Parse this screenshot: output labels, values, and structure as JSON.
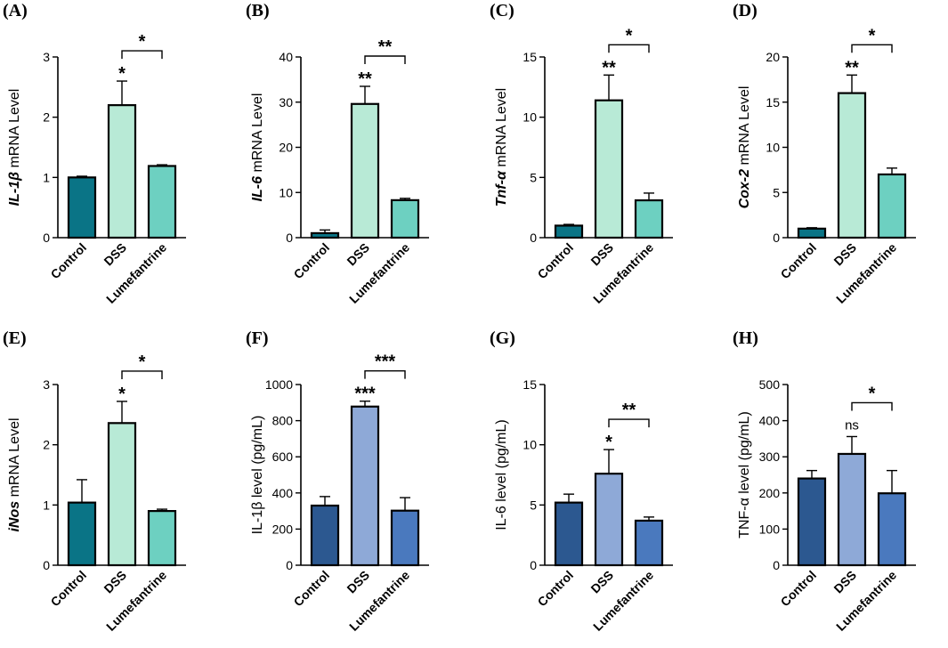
{
  "figure": {
    "categories": [
      "Control",
      "DSS",
      "Lumefantrine"
    ]
  },
  "chart_data": [
    {
      "type": "bar",
      "panel": "(A)",
      "ylabel_italic": "IL-1β",
      "ylabel_rest": " mRNA Level",
      "categories": [
        "Control",
        "DSS",
        "Lumefantrine"
      ],
      "values": [
        1.0,
        2.2,
        1.19
      ],
      "errors": [
        0.02,
        0.4,
        0.02
      ],
      "ylim": [
        0,
        3
      ],
      "yticks": [
        "0",
        "1",
        "2",
        "3"
      ],
      "colors": [
        "#0a7486",
        "#b8ead6",
        "#6dd0c1"
      ],
      "bar_annotations": [
        {
          "index": 1,
          "text": "*"
        }
      ],
      "bracket": {
        "from": 1,
        "to": 2,
        "text": "*"
      }
    },
    {
      "type": "bar",
      "panel": "(B)",
      "ylabel_italic": "IL-6",
      "ylabel_rest": " mRNA Level",
      "categories": [
        "Control",
        "DSS",
        "Lumefantrine"
      ],
      "values": [
        1.0,
        29.6,
        8.3
      ],
      "errors": [
        0.7,
        3.9,
        0.4
      ],
      "ylim": [
        0,
        40
      ],
      "yticks": [
        "0",
        "10",
        "20",
        "30",
        "40"
      ],
      "colors": [
        "#0a7486",
        "#b8ead6",
        "#6dd0c1"
      ],
      "bar_annotations": [
        {
          "index": 1,
          "text": "**"
        }
      ],
      "bracket": {
        "from": 1,
        "to": 2,
        "text": "**"
      }
    },
    {
      "type": "bar",
      "panel": "(C)",
      "ylabel_italic": "Tnf-α",
      "ylabel_rest": " mRNA Level",
      "categories": [
        "Control",
        "DSS",
        "Lumefantrine"
      ],
      "values": [
        1.0,
        11.4,
        3.1
      ],
      "errors": [
        0.1,
        2.1,
        0.6
      ],
      "ylim": [
        0,
        15
      ],
      "yticks": [
        "0",
        "5",
        "10",
        "15"
      ],
      "colors": [
        "#0a7486",
        "#b8ead6",
        "#6dd0c1"
      ],
      "bar_annotations": [
        {
          "index": 1,
          "text": "**"
        }
      ],
      "bracket": {
        "from": 1,
        "to": 2,
        "text": "*"
      }
    },
    {
      "type": "bar",
      "panel": "(D)",
      "ylabel_italic": "Cox-2",
      "ylabel_rest": " mRNA Level",
      "categories": [
        "Control",
        "DSS",
        "Lumefantrine"
      ],
      "values": [
        1.0,
        16.0,
        7.0
      ],
      "errors": [
        0.1,
        2.0,
        0.7
      ],
      "ylim": [
        0,
        20
      ],
      "yticks": [
        "0",
        "5",
        "10",
        "15",
        "20"
      ],
      "colors": [
        "#0a7486",
        "#b8ead6",
        "#6dd0c1"
      ],
      "bar_annotations": [
        {
          "index": 1,
          "text": "**"
        }
      ],
      "bracket": {
        "from": 1,
        "to": 2,
        "text": "*"
      }
    },
    {
      "type": "bar",
      "panel": "(E)",
      "ylabel_italic": "iNos",
      "ylabel_rest": " mRNA Level",
      "categories": [
        "Control",
        "DSS",
        "Lumefantrine"
      ],
      "values": [
        1.04,
        2.36,
        0.9
      ],
      "errors": [
        0.38,
        0.36,
        0.03
      ],
      "ylim": [
        0,
        3
      ],
      "yticks": [
        "0",
        "1",
        "2",
        "3"
      ],
      "colors": [
        "#0a7486",
        "#b8ead6",
        "#6dd0c1"
      ],
      "bar_annotations": [
        {
          "index": 1,
          "text": "*"
        }
      ],
      "bracket": {
        "from": 1,
        "to": 2,
        "text": "*"
      }
    },
    {
      "type": "bar",
      "panel": "(F)",
      "ylabel_italic": "",
      "ylabel_rest": "IL-1β level (pg/mL)",
      "categories": [
        "Control",
        "DSS",
        "Lumefantrine"
      ],
      "values": [
        330,
        878,
        302
      ],
      "errors": [
        50,
        30,
        72
      ],
      "ylim": [
        0,
        1000
      ],
      "yticks": [
        "0",
        "200",
        "400",
        "600",
        "800",
        "1000"
      ],
      "colors": [
        "#2c5890",
        "#8ea9d7",
        "#4a79be"
      ],
      "bar_annotations": [
        {
          "index": 1,
          "text": "***"
        }
      ],
      "bracket": {
        "from": 1,
        "to": 2,
        "text": "***"
      }
    },
    {
      "type": "bar",
      "panel": "(G)",
      "ylabel_italic": "",
      "ylabel_rest": "IL-6 level (pg/mL)",
      "categories": [
        "Control",
        "DSS",
        "Lumefantrine"
      ],
      "values": [
        5.2,
        7.6,
        3.7
      ],
      "errors": [
        0.7,
        2.0,
        0.3
      ],
      "ylim": [
        0,
        15
      ],
      "yticks": [
        "0",
        "5",
        "10",
        "15"
      ],
      "colors": [
        "#2c5890",
        "#8ea9d7",
        "#4a79be"
      ],
      "bar_annotations": [
        {
          "index": 1,
          "text": "*"
        }
      ],
      "bracket": {
        "from": 1,
        "to": 2,
        "text": "**"
      }
    },
    {
      "type": "bar",
      "panel": "(H)",
      "ylabel_italic": "",
      "ylabel_rest": "TNF-α level (pg/mL)",
      "categories": [
        "Control",
        "DSS",
        "Lumefantrine"
      ],
      "values": [
        240,
        308,
        199
      ],
      "errors": [
        22,
        48,
        63
      ],
      "ylim": [
        0,
        500
      ],
      "yticks": [
        "0",
        "100",
        "200",
        "300",
        "400",
        "500"
      ],
      "colors": [
        "#2c5890",
        "#8ea9d7",
        "#4a79be"
      ],
      "bar_annotations": [
        {
          "index": 1,
          "text": "ns"
        }
      ],
      "bracket": {
        "from": 1,
        "to": 2,
        "text": "*"
      }
    }
  ]
}
